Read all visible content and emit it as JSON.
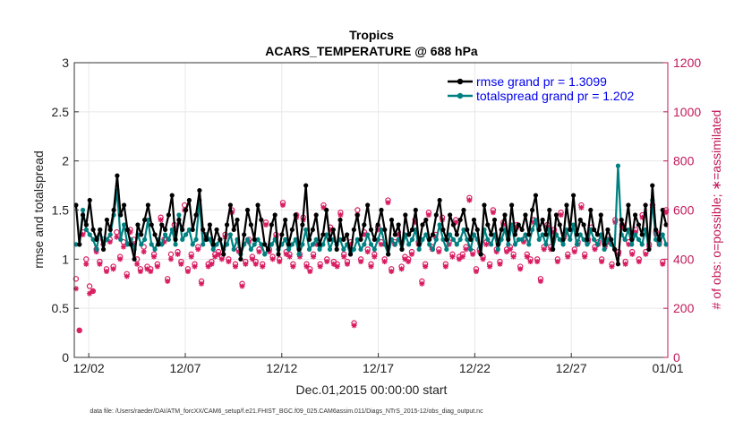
{
  "chart_data": {
    "type": "line",
    "title": "Tropics",
    "subtitle": "ACARS_TEMPERATURE @ 688 hPa",
    "xlabel": "Dec.01,2015 00:00:00 start",
    "ylabel_left": "rmse and totalspread",
    "ylabel_right": "# of obs: o=possible; ∗=assimilated",
    "footer": "data file: /Users/raeder/DAI/ATM_forcXX/CAM6_setup/f.e21.FHIST_BGC.f09_025.CAM6assim.011/Diags_NTrS_2015-12/obs_diag_output.nc",
    "x_tick_labels": [
      "12/02",
      "12/07",
      "12/12",
      "12/17",
      "12/22",
      "12/27",
      "01/01"
    ],
    "x_tick_days": [
      1,
      6,
      11,
      16,
      21,
      26,
      31
    ],
    "xlim_days": [
      0.25,
      31
    ],
    "y_left_ticks": [
      "0",
      "0.5",
      "1",
      "1.5",
      "2",
      "2.5",
      "3"
    ],
    "ylim_left": [
      0,
      3
    ],
    "y_right_ticks": [
      "0",
      "200",
      "400",
      "600",
      "800",
      "1000",
      "1200"
    ],
    "ylim_right": [
      0,
      1200
    ],
    "colors": {
      "rmse": "#000000",
      "spread": "#008080",
      "obs": "#d81b60",
      "grid": "#e8e8e8",
      "right_axis": "#c2185b"
    },
    "series": [
      {
        "name": "rmse grand pr = 1.3099",
        "axis": "left",
        "values": [
          1.55,
          1.15,
          1.45,
          1.35,
          1.6,
          1.3,
          1.2,
          1.3,
          1.1,
          1.4,
          1.3,
          1.5,
          1.85,
          1.45,
          1.55,
          1.3,
          1.15,
          1.0,
          1.35,
          1.25,
          1.4,
          1.55,
          1.35,
          1.25,
          1.15,
          1.35,
          1.3,
          1.45,
          1.65,
          1.2,
          1.4,
          1.3,
          1.5,
          1.6,
          1.3,
          1.45,
          1.7,
          1.3,
          1.2,
          1.35,
          1.15,
          1.3,
          1.2,
          1.05,
          1.35,
          1.55,
          1.3,
          1.4,
          1.0,
          1.25,
          1.5,
          1.35,
          1.2,
          1.55,
          1.4,
          1.15,
          1.1,
          1.35,
          1.45,
          1.05,
          1.25,
          1.4,
          1.15,
          1.3,
          1.45,
          1.1,
          1.35,
          1.75,
          1.2,
          1.3,
          1.45,
          1.15,
          1.25,
          1.5,
          1.2,
          1.3,
          1.1,
          1.4,
          1.2,
          1.25,
          1.05,
          1.3,
          1.45,
          1.2,
          1.35,
          1.55,
          1.3,
          1.2,
          1.35,
          1.5,
          1.3,
          1.05,
          1.4,
          1.25,
          1.35,
          1.1,
          1.45,
          1.25,
          1.3,
          1.5,
          1.15,
          1.35,
          1.4,
          1.2,
          1.25,
          1.45,
          1.6,
          1.3,
          1.2,
          1.45,
          1.35,
          1.25,
          1.4,
          1.5,
          1.3,
          1.2,
          1.4,
          1.3,
          1.05,
          1.55,
          1.35,
          1.25,
          1.4,
          1.15,
          1.3,
          1.45,
          1.2,
          1.55,
          1.25,
          1.35,
          1.3,
          1.45,
          1.25,
          1.5,
          1.65,
          1.3,
          1.4,
          1.25,
          1.5,
          1.1,
          1.45,
          1.35,
          1.2,
          1.55,
          1.3,
          1.65,
          1.25,
          1.4,
          1.35,
          1.2,
          1.5,
          1.3,
          1.25,
          1.45,
          1.15,
          1.3,
          1.2,
          1.1,
          0.95,
          1.4,
          1.3,
          1.55,
          1.2,
          1.45,
          1.35,
          1.25,
          1.55,
          1.1,
          1.75,
          1.3,
          1.2,
          1.5,
          1.35
        ]
      },
      {
        "name": "totalspread grand pr = 1.202",
        "axis": "left",
        "values": [
          1.15,
          1.15,
          1.5,
          1.3,
          1.25,
          1.2,
          1.1,
          1.3,
          1.15,
          1.2,
          1.25,
          1.45,
          1.7,
          1.2,
          1.35,
          1.15,
          1.2,
          1.1,
          1.25,
          1.15,
          1.2,
          1.4,
          1.15,
          1.1,
          1.2,
          1.15,
          1.25,
          1.2,
          1.3,
          1.15,
          1.45,
          1.2,
          1.25,
          1.3,
          1.15,
          1.2,
          1.6,
          1.15,
          1.25,
          1.2,
          1.1,
          1.15,
          1.2,
          1.1,
          1.15,
          1.25,
          1.1,
          1.2,
          1.05,
          1.15,
          1.2,
          1.1,
          1.15,
          1.2,
          1.15,
          1.05,
          1.1,
          1.15,
          1.2,
          1.1,
          1.15,
          1.2,
          1.1,
          1.15,
          1.2,
          1.05,
          1.15,
          1.3,
          1.1,
          1.15,
          1.2,
          1.1,
          1.15,
          1.25,
          1.1,
          1.2,
          1.15,
          1.2,
          1.1,
          1.15,
          1.05,
          1.1,
          1.2,
          1.1,
          1.15,
          1.25,
          1.15,
          1.1,
          1.2,
          1.3,
          1.15,
          1.05,
          1.2,
          1.15,
          1.2,
          1.1,
          1.25,
          1.15,
          1.2,
          1.3,
          1.1,
          1.2,
          1.25,
          1.15,
          1.1,
          1.2,
          1.35,
          1.2,
          1.1,
          1.25,
          1.2,
          1.15,
          1.2,
          1.3,
          1.2,
          1.1,
          1.25,
          1.2,
          1.05,
          1.3,
          1.2,
          1.15,
          1.25,
          1.1,
          1.2,
          1.3,
          1.15,
          1.35,
          1.15,
          1.2,
          1.2,
          1.25,
          1.15,
          1.3,
          1.4,
          1.2,
          1.25,
          1.15,
          1.3,
          1.1,
          1.25,
          1.2,
          1.15,
          1.3,
          1.2,
          1.35,
          1.15,
          1.25,
          1.2,
          1.15,
          1.3,
          1.2,
          1.15,
          1.25,
          1.1,
          1.2,
          1.15,
          1.1,
          1.95,
          1.25,
          1.2,
          1.3,
          1.15,
          1.25,
          1.2,
          1.15,
          1.3,
          1.1,
          1.6,
          1.2,
          1.15,
          1.25,
          1.15
        ]
      },
      {
        "name": "obs possible",
        "axis": "right",
        "marker": "o",
        "values": [
          320,
          110,
          510,
          400,
          290,
          270,
          440,
          390,
          480,
          360,
          480,
          370,
          510,
          410,
          470,
          340,
          520,
          480,
          400,
          360,
          450,
          370,
          360,
          420,
          380,
          570,
          480,
          320,
          420,
          540,
          430,
          390,
          620,
          360,
          420,
          380,
          450,
          310,
          500,
          380,
          390,
          420,
          430,
          410,
          500,
          400,
          600,
          380,
          440,
          300,
          390,
          480,
          410,
          390,
          440,
          380,
          550,
          440,
          410,
          500,
          400,
          630,
          430,
          420,
          380,
          580,
          420,
          570,
          380,
          360,
          420,
          470,
          380,
          620,
          400,
          530,
          390,
          380,
          590,
          420,
          390,
          470,
          140,
          600,
          400,
          510,
          440,
          380,
          420,
          530,
          470,
          400,
          640,
          360,
          470,
          510,
          370,
          410,
          400,
          430,
          560,
          470,
          310,
          380,
          590,
          450,
          500,
          440,
          570,
          380,
          470,
          420,
          560,
          410,
          420,
          450,
          650,
          430,
          360,
          440,
          410,
          470,
          380,
          600,
          440,
          390,
          550,
          440,
          450,
          420,
          540,
          370,
          480,
          420,
          400,
          560,
          400,
          320,
          450,
          540,
          450,
          520,
          400,
          590,
          500,
          420,
          530,
          440,
          470,
          620,
          420,
          480,
          530,
          450,
          470,
          400,
          460,
          480,
          380,
          560,
          430,
          540,
          390,
          470,
          430,
          520,
          400,
          580,
          430,
          460,
          620,
          510,
          470,
          390,
          600
        ]
      },
      {
        "name": "obs assimilated",
        "axis": "right",
        "marker": "*",
        "values": [
          280,
          110,
          500,
          380,
          260,
          270,
          430,
          380,
          460,
          350,
          470,
          360,
          490,
          400,
          450,
          330,
          510,
          460,
          380,
          350,
          430,
          360,
          350,
          410,
          370,
          560,
          470,
          310,
          400,
          520,
          420,
          380,
          600,
          350,
          410,
          370,
          440,
          300,
          480,
          370,
          380,
          410,
          420,
          400,
          490,
          390,
          590,
          370,
          430,
          290,
          380,
          470,
          400,
          380,
          430,
          370,
          540,
          430,
          400,
          490,
          390,
          620,
          420,
          410,
          370,
          570,
          410,
          560,
          370,
          350,
          410,
          460,
          370,
          610,
          390,
          520,
          380,
          370,
          580,
          410,
          380,
          460,
          130,
          580,
          390,
          500,
          430,
          370,
          410,
          520,
          460,
          390,
          630,
          350,
          460,
          500,
          360,
          400,
          390,
          420,
          550,
          460,
          300,
          370,
          580,
          440,
          490,
          430,
          560,
          370,
          460,
          410,
          550,
          400,
          410,
          440,
          640,
          420,
          350,
          430,
          400,
          460,
          370,
          590,
          430,
          380,
          540,
          430,
          440,
          410,
          530,
          360,
          470,
          410,
          390,
          550,
          390,
          310,
          440,
          530,
          440,
          510,
          390,
          580,
          490,
          410,
          520,
          430,
          460,
          610,
          410,
          470,
          520,
          440,
          460,
          390,
          450,
          470,
          370,
          550,
          420,
          530,
          380,
          460,
          420,
          510,
          390,
          570,
          420,
          450,
          610,
          500,
          460,
          380,
          590
        ]
      }
    ]
  }
}
